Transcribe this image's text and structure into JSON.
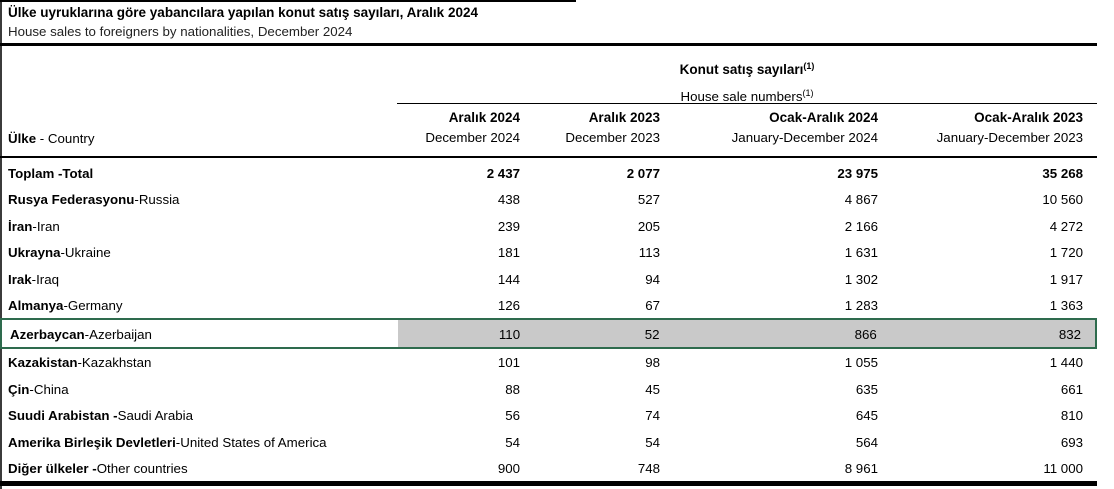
{
  "title": {
    "tr": "Ülke uyruklarına göre yabancılara yapılan konut satış sayıları, Aralık 2024",
    "en": "House sales to foreigners by nationalities, December 2024"
  },
  "table": {
    "group_header": {
      "tr": "Konut satış sayıları",
      "en": "House sale numbers",
      "footnote": "(1)"
    },
    "country_header": {
      "tr": "Ülke",
      "en": "Country"
    },
    "separator": " - ",
    "columns": [
      {
        "tr": "Aralık 2024",
        "en": "December 2024"
      },
      {
        "tr": "Aralık 2023",
        "en": "December 2023"
      },
      {
        "tr": "Ocak-Aralık 2024",
        "en": "January-December 2024"
      },
      {
        "tr": "Ocak-Aralık 2023",
        "en": "January-December 2023"
      }
    ],
    "rows": [
      {
        "name_tr": "Toplam",
        "name_en": "Total",
        "values": [
          "2 437",
          "2 077",
          "23 975",
          "35 268"
        ],
        "bold": true,
        "bold_sep": true,
        "highlighted": false
      },
      {
        "name_tr": "Rusya Federasyonu",
        "name_en": "Russia",
        "values": [
          "438",
          "527",
          "4 867",
          "10 560"
        ],
        "bold": false,
        "bold_sep": false,
        "highlighted": false
      },
      {
        "name_tr": "İran",
        "name_en": "Iran",
        "values": [
          "239",
          "205",
          "2 166",
          "4 272"
        ],
        "bold": false,
        "bold_sep": false,
        "highlighted": false
      },
      {
        "name_tr": "Ukrayna",
        "name_en": "Ukraine",
        "values": [
          "181",
          "113",
          "1 631",
          "1 720"
        ],
        "bold": false,
        "bold_sep": false,
        "highlighted": false
      },
      {
        "name_tr": "Irak",
        "name_en": "Iraq",
        "values": [
          "144",
          "94",
          "1 302",
          "1 917"
        ],
        "bold": false,
        "bold_sep": false,
        "highlighted": false
      },
      {
        "name_tr": "Almanya",
        "name_en": "Germany",
        "values": [
          "126",
          "67",
          "1 283",
          "1 363"
        ],
        "bold": false,
        "bold_sep": false,
        "highlighted": false
      },
      {
        "name_tr": "Azerbaycan",
        "name_en": "Azerbaijan",
        "values": [
          "110",
          "52",
          "866",
          "832"
        ],
        "bold": false,
        "bold_sep": false,
        "highlighted": true
      },
      {
        "name_tr": "Kazakistan",
        "name_en": "Kazakhstan",
        "values": [
          "101",
          "98",
          "1 055",
          "1 440"
        ],
        "bold": false,
        "bold_sep": false,
        "highlighted": false
      },
      {
        "name_tr": "Çin",
        "name_en": "China",
        "values": [
          "88",
          "45",
          "635",
          "661"
        ],
        "bold": false,
        "bold_sep": false,
        "highlighted": false
      },
      {
        "name_tr": "Suudi Arabistan",
        "name_en": "Saudi Arabia",
        "values": [
          "56",
          "74",
          "645",
          "810"
        ],
        "bold": false,
        "bold_sep": true,
        "highlighted": false
      },
      {
        "name_tr": "Amerika Birleşik Devletleri",
        "name_en": "United States of America",
        "values": [
          "54",
          "54",
          "564",
          "693"
        ],
        "bold": false,
        "bold_sep": false,
        "highlighted": false
      },
      {
        "name_tr": "Diğer ülkeler",
        "name_en": "Other countries",
        "values": [
          "900",
          "748",
          "8 961",
          "11 000"
        ],
        "bold": false,
        "bold_sep": true,
        "highlighted": false
      }
    ]
  },
  "colors": {
    "highlight_border": "#2e6b4d",
    "highlight_fill": "#c9c9c9",
    "rule": "#000000",
    "side_border": "#3b3b3b"
  }
}
